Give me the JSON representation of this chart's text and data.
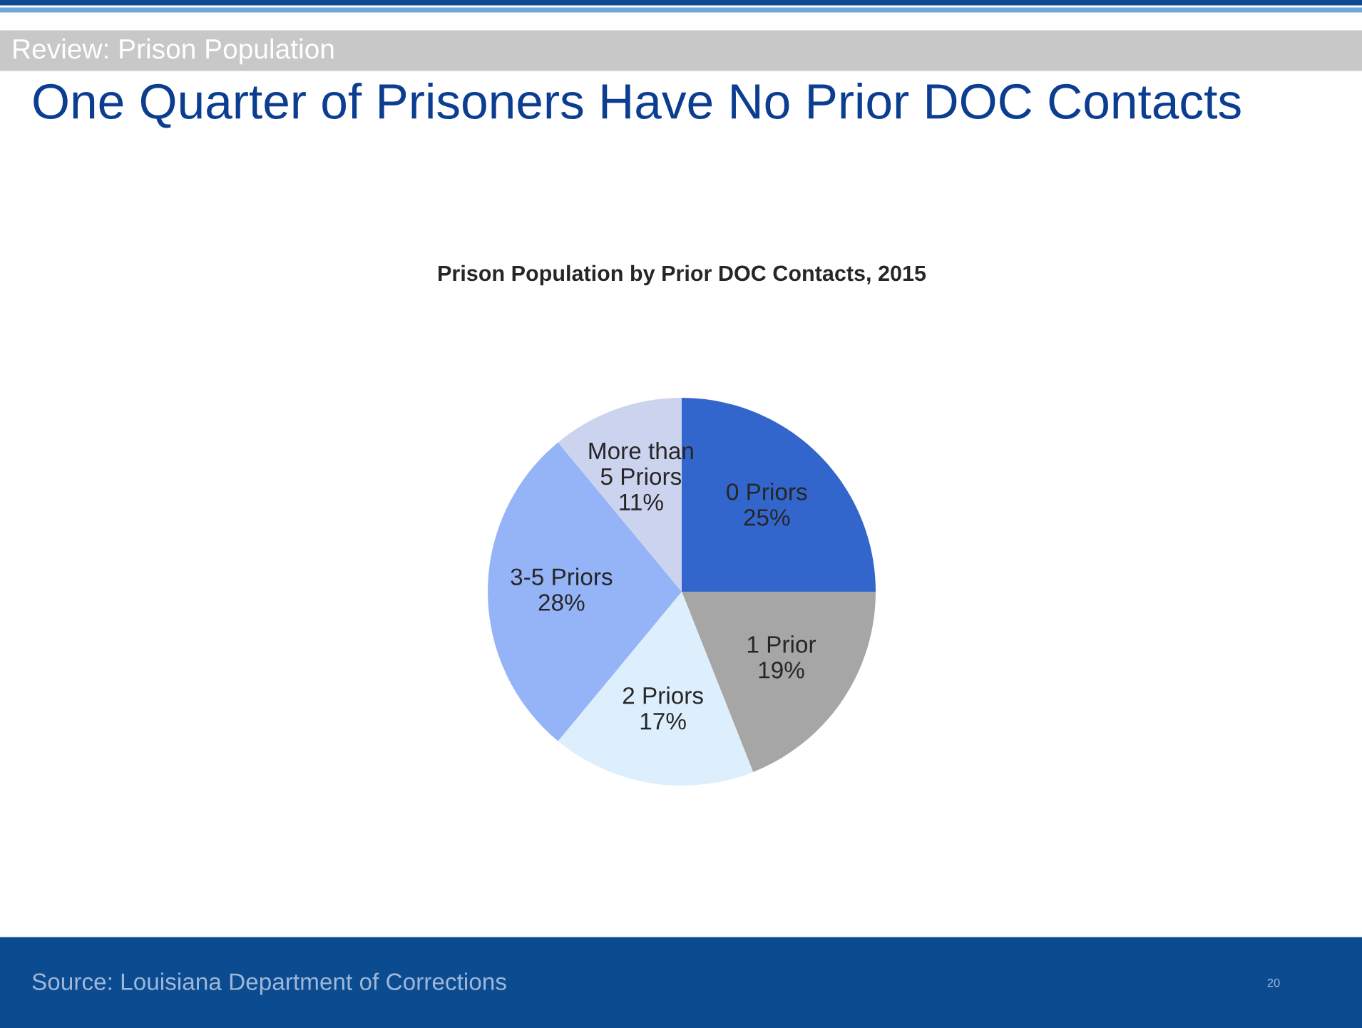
{
  "chart_data": {
    "type": "pie",
    "title": "One Quarter of Prisoners Have No Prior DOC Contacts",
    "subtitle": "Prison Population by Prior DOC Contacts, 2015",
    "categories": [
      "0 Priors",
      "1 Prior",
      "2 Priors",
      "3-5 Priors",
      "More than 5 Priors"
    ],
    "values": [
      25,
      19,
      17,
      28,
      11
    ],
    "value_labels": [
      "25%",
      "19%",
      "17%",
      "28%",
      "11%"
    ],
    "colors": [
      "#3366cc",
      "#a6a6a6",
      "#ddeffc",
      "#95b4f8",
      "#ccd3ee"
    ],
    "annotations": [
      "Review: Prison Population",
      "Source: Louisiana Department of Corrections",
      "20"
    ]
  }
}
